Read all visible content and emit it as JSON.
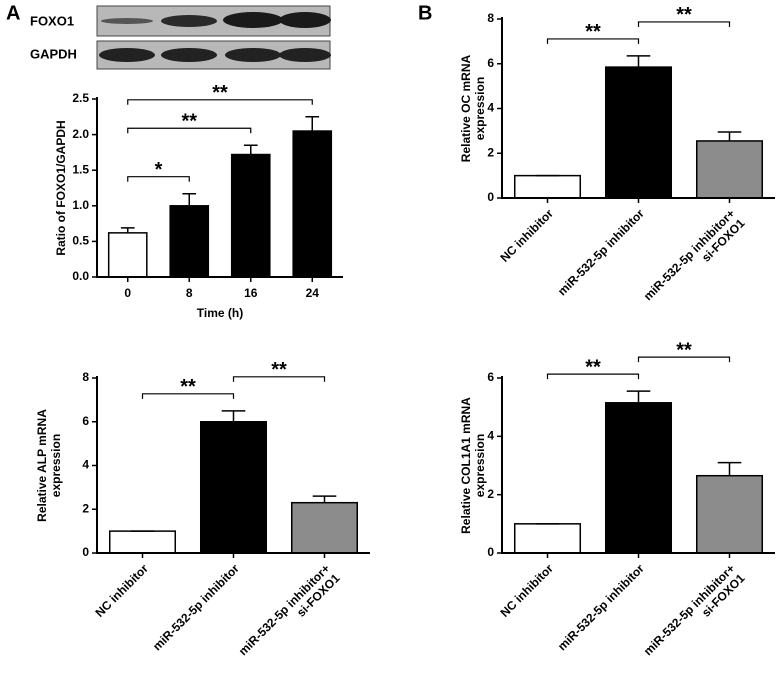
{
  "panel_labels": [
    "A",
    "B"
  ],
  "blot": {
    "rows": [
      "FOXO1",
      "GAPDH"
    ]
  },
  "chart_data": [
    {
      "type": "bar",
      "ylabel": "Ratio of FOXO1/GAPDH",
      "xlabel": "Time (h)",
      "categories": [
        "0",
        "8",
        "16",
        "24"
      ],
      "values": [
        0.62,
        1.0,
        1.72,
        2.05
      ],
      "errors": [
        0.07,
        0.17,
        0.13,
        0.2
      ],
      "colors": [
        "#ffffff",
        "#000000",
        "#000000",
        "#000000"
      ],
      "ylim": [
        0,
        2.5
      ],
      "yticks": [
        {
          "value": 0,
          "label": "0.0"
        },
        0.5,
        {
          "value": 1,
          "label": "1.0"
        },
        1.5,
        {
          "value": 2,
          "label": "2.0"
        },
        2.5
      ],
      "annotations": [
        {
          "text": "*",
          "between": [
            "0",
            "8"
          ]
        },
        {
          "text": "**",
          "between": [
            "0",
            "16"
          ]
        },
        {
          "text": "**",
          "between": [
            "0",
            "24"
          ]
        }
      ]
    },
    {
      "type": "bar",
      "ylabel": "Relative OC mRNA\nexpression",
      "categories": [
        "NC inhibitor",
        "miR-532-5p inhibitor",
        "miR-532-5p inhibitor+\nsi-FOXO1"
      ],
      "values": [
        1.0,
        5.85,
        2.55
      ],
      "errors": [
        0,
        0.5,
        0.4
      ],
      "colors": [
        "#ffffff",
        "#000000",
        "#8c8c8c"
      ],
      "ylim": [
        0,
        8
      ],
      "yticks": [
        0,
        2,
        4,
        6,
        8
      ],
      "annotations": [
        {
          "text": "**",
          "between": [
            "NC inhibitor",
            "miR-532-5p inhibitor"
          ]
        },
        {
          "text": "**",
          "between": [
            "miR-532-5p inhibitor",
            "miR-532-5p inhibitor+\nsi-FOXO1"
          ]
        }
      ]
    },
    {
      "type": "bar",
      "ylabel": "Relative ALP mRNA\nexpression",
      "categories": [
        "NC inhibitor",
        "miR-532-5p inhibitor",
        "miR-532-5p inhibitor+\nsi-FOXO1"
      ],
      "values": [
        1.0,
        6.0,
        2.3
      ],
      "errors": [
        0,
        0.5,
        0.3
      ],
      "colors": [
        "#ffffff",
        "#000000",
        "#8c8c8c"
      ],
      "ylim": [
        0,
        8
      ],
      "yticks": [
        0,
        2,
        4,
        6,
        8
      ],
      "annotations": [
        {
          "text": "**",
          "between": [
            "NC inhibitor",
            "miR-532-5p inhibitor"
          ]
        },
        {
          "text": "**",
          "between": [
            "miR-532-5p inhibitor",
            "miR-532-5p inhibitor+\nsi-FOXO1"
          ]
        }
      ]
    },
    {
      "type": "bar",
      "ylabel": "Relative COL1A1 mRNA\nexpression",
      "categories": [
        "NC inhibitor",
        "miR-532-5p inhibitor",
        "miR-532-5p inhibitor+\nsi-FOXO1"
      ],
      "values": [
        1.0,
        5.15,
        2.65
      ],
      "errors": [
        0,
        0.4,
        0.45
      ],
      "colors": [
        "#ffffff",
        "#000000",
        "#8c8c8c"
      ],
      "ylim": [
        0,
        6
      ],
      "yticks": [
        0,
        2,
        4,
        6
      ],
      "annotations": [
        {
          "text": "**",
          "between": [
            "NC inhibitor",
            "miR-532-5p inhibitor"
          ]
        },
        {
          "text": "**",
          "between": [
            "miR-532-5p inhibitor",
            "miR-532-5p inhibitor+\nsi-FOXO1"
          ]
        }
      ]
    }
  ]
}
